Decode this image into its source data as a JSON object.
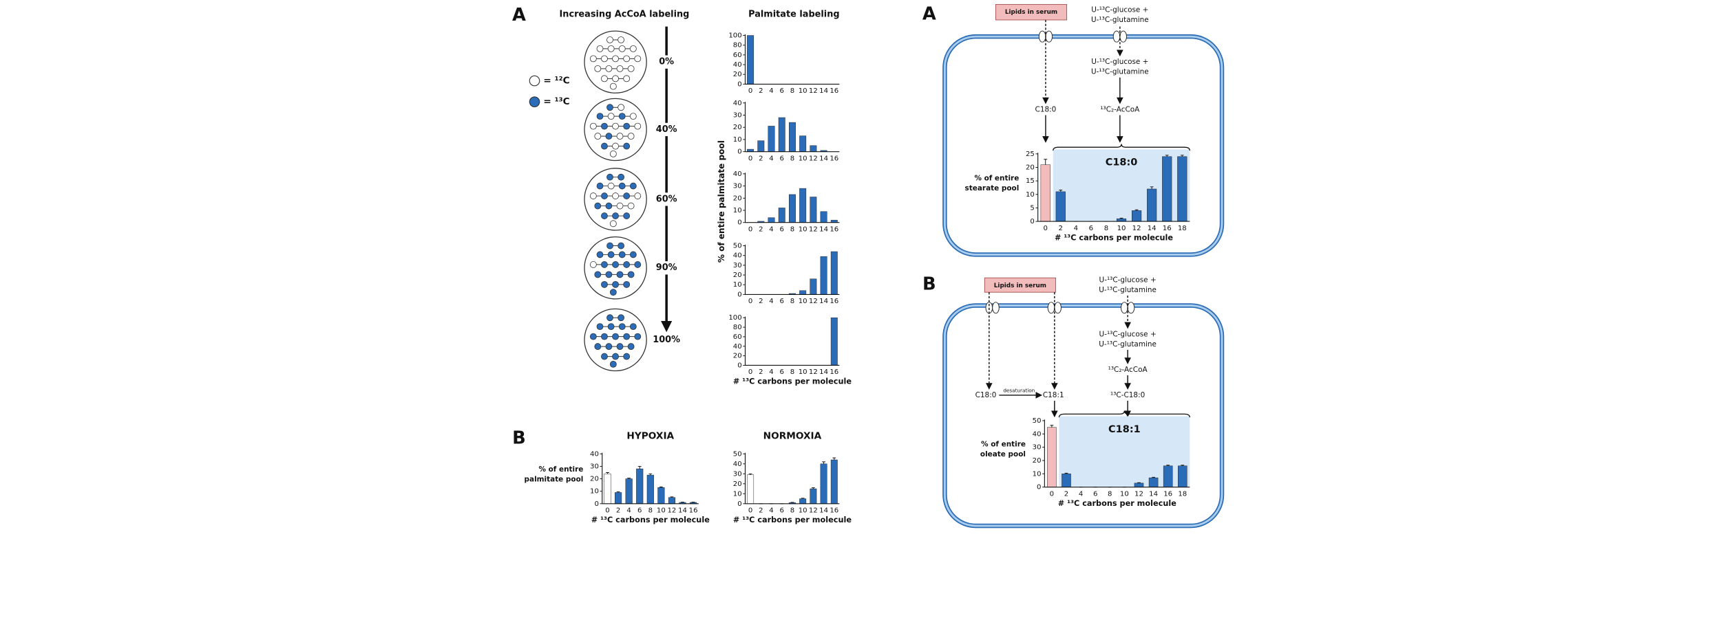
{
  "panel_labels": [
    "A",
    "B",
    "A",
    "B"
  ],
  "left": {
    "title_circles": "Increasing AcCoA labeling",
    "title_bars": "Palmitate labeling",
    "legend": [
      "= ¹²C",
      "= ¹³C"
    ],
    "legend_colors": [
      "#ffffff",
      "#2a6cb8"
    ],
    "levels": [
      {
        "value": 0,
        "label": "0%"
      },
      {
        "value": 40,
        "label": "40%"
      },
      {
        "value": 60,
        "label": "60%"
      },
      {
        "value": 90,
        "label": "90%"
      },
      {
        "value": 100,
        "label": "100%"
      }
    ]
  },
  "diagram": {
    "lipids": "Lipids in serum",
    "glucose": "U-¹³C-glucose +",
    "glutamine": "U-¹³C-glutamine",
    "c180": "C18:0",
    "accoa": "¹³C₂-AcCoA",
    "desaturation": "desaturation",
    "c181": "C18:1",
    "c13c180": "¹³C-C18:0"
  },
  "chart_data": [
    {
      "type": "bar",
      "categories": [
        0,
        2,
        4,
        6,
        8,
        10,
        12,
        14,
        16
      ],
      "values": [
        100,
        0,
        0,
        0,
        0,
        0,
        0,
        0,
        0
      ],
      "colors": [
        "#2a6cb8",
        "#2a6cb8",
        "#2a6cb8",
        "#2a6cb8",
        "#2a6cb8",
        "#2a6cb8",
        "#2a6cb8",
        "#2a6cb8",
        "#2a6cb8"
      ],
      "ylim": [
        0,
        100
      ],
      "yticks": [
        0,
        20,
        40,
        60,
        80,
        100
      ]
    },
    {
      "type": "bar",
      "categories": [
        0,
        2,
        4,
        6,
        8,
        10,
        12,
        14,
        16
      ],
      "values": [
        2,
        9,
        21,
        28,
        24,
        13,
        5,
        1,
        0
      ],
      "colors": [
        "#2a6cb8",
        "#2a6cb8",
        "#2a6cb8",
        "#2a6cb8",
        "#2a6cb8",
        "#2a6cb8",
        "#2a6cb8",
        "#2a6cb8",
        "#2a6cb8"
      ],
      "ylim": [
        0,
        40
      ],
      "yticks": [
        0,
        10,
        20,
        30,
        40
      ]
    },
    {
      "type": "bar",
      "categories": [
        0,
        2,
        4,
        6,
        8,
        10,
        12,
        14,
        16
      ],
      "values": [
        0,
        1,
        4,
        12,
        23,
        28,
        21,
        9,
        2
      ],
      "colors": [
        "#2a6cb8",
        "#2a6cb8",
        "#2a6cb8",
        "#2a6cb8",
        "#2a6cb8",
        "#2a6cb8",
        "#2a6cb8",
        "#2a6cb8",
        "#2a6cb8"
      ],
      "ylim": [
        0,
        40
      ],
      "yticks": [
        0,
        10,
        20,
        30,
        40
      ],
      "ylabel": "% of entire palmitate pool"
    },
    {
      "type": "bar",
      "categories": [
        0,
        2,
        4,
        6,
        8,
        10,
        12,
        14,
        16
      ],
      "values": [
        0,
        0,
        0,
        0,
        1,
        4,
        16,
        39,
        44
      ],
      "colors": [
        "#2a6cb8",
        "#2a6cb8",
        "#2a6cb8",
        "#2a6cb8",
        "#2a6cb8",
        "#2a6cb8",
        "#2a6cb8",
        "#2a6cb8",
        "#2a6cb8"
      ],
      "ylim": [
        0,
        50
      ],
      "yticks": [
        0,
        10,
        20,
        30,
        40,
        50
      ]
    },
    {
      "type": "bar",
      "categories": [
        0,
        2,
        4,
        6,
        8,
        10,
        12,
        14,
        16
      ],
      "values": [
        0,
        0,
        0,
        0,
        0,
        0,
        0,
        0,
        100
      ],
      "colors": [
        "#2a6cb8",
        "#2a6cb8",
        "#2a6cb8",
        "#2a6cb8",
        "#2a6cb8",
        "#2a6cb8",
        "#2a6cb8",
        "#2a6cb8",
        "#2a6cb8"
      ],
      "ylim": [
        0,
        100
      ],
      "yticks": [
        0,
        20,
        40,
        60,
        80,
        100
      ],
      "xlabel": "# ¹³C carbons per molecule"
    },
    {
      "type": "bar",
      "title": "HYPOXIA",
      "categories": [
        0,
        2,
        4,
        6,
        8,
        10,
        12,
        14,
        16
      ],
      "values": [
        24,
        9,
        20,
        28,
        23,
        13,
        5,
        1,
        1
      ],
      "errors": [
        1,
        0.5,
        0.5,
        2,
        1,
        0.5,
        0.5,
        0.3,
        0.3
      ],
      "colors": [
        "#ffffff",
        "#2a6cb8",
        "#2a6cb8",
        "#2a6cb8",
        "#2a6cb8",
        "#2a6cb8",
        "#2a6cb8",
        "#2a6cb8",
        "#2a6cb8"
      ],
      "ylim": [
        0,
        40
      ],
      "yticks": [
        0,
        10,
        20,
        30,
        40
      ],
      "ylabel": [
        "% of entire",
        "palmitate pool"
      ],
      "xlabel": "# ¹³C carbons per molecule"
    },
    {
      "type": "bar",
      "title": "NORMOXIA",
      "categories": [
        0,
        2,
        4,
        6,
        8,
        10,
        12,
        14,
        16
      ],
      "values": [
        29,
        0,
        0,
        0,
        1,
        5,
        15,
        40,
        44
      ],
      "errors": [
        1,
        0,
        0,
        0,
        0.3,
        0.5,
        1,
        2,
        2
      ],
      "colors": [
        "#ffffff",
        "#2a6cb8",
        "#2a6cb8",
        "#2a6cb8",
        "#2a6cb8",
        "#2a6cb8",
        "#2a6cb8",
        "#2a6cb8",
        "#2a6cb8"
      ],
      "ylim": [
        0,
        50
      ],
      "yticks": [
        0,
        10,
        20,
        30,
        40,
        50
      ],
      "xlabel": "# ¹³C carbons per molecule"
    },
    {
      "type": "bar",
      "categories": [
        0,
        2,
        4,
        6,
        8,
        10,
        12,
        14,
        16,
        18
      ],
      "values": [
        21,
        11,
        0,
        0,
        0,
        1,
        4,
        12,
        24,
        24
      ],
      "errors": [
        2,
        0.6,
        0,
        0,
        0,
        0.2,
        0.3,
        0.8,
        0.5,
        0.5
      ],
      "colors": [
        "#f2bcbc",
        "#2a6cb8",
        "#2a6cb8",
        "#2a6cb8",
        "#2a6cb8",
        "#2a6cb8",
        "#2a6cb8",
        "#2a6cb8",
        "#2a6cb8",
        "#2a6cb8"
      ],
      "ylim": [
        0,
        25
      ],
      "yticks": [
        0,
        5,
        10,
        15,
        20,
        25
      ],
      "ylabel": [
        "% of entire",
        "stearate pool"
      ],
      "xlabel": "# ¹³C carbons per molecule",
      "annotation": "C18:0",
      "annotation_color": "#d6e8f8"
    },
    {
      "type": "bar",
      "categories": [
        0,
        2,
        4,
        6,
        8,
        10,
        12,
        14,
        16,
        18
      ],
      "values": [
        45,
        10,
        0,
        0,
        0,
        0,
        3,
        7,
        16,
        16
      ],
      "errors": [
        1.5,
        0.5,
        0,
        0,
        0,
        0,
        0.3,
        0.4,
        0.5,
        0.5
      ],
      "colors": [
        "#f2bcbc",
        "#2a6cb8",
        "#2a6cb8",
        "#2a6cb8",
        "#2a6cb8",
        "#2a6cb8",
        "#2a6cb8",
        "#2a6cb8",
        "#2a6cb8",
        "#2a6cb8"
      ],
      "ylim": [
        0,
        50
      ],
      "yticks": [
        0,
        10,
        20,
        30,
        40,
        50
      ],
      "ylabel": [
        "% of entire",
        "oleate pool"
      ],
      "xlabel": "# ¹³C carbons per molecule",
      "annotation": "C18:1",
      "annotation_color": "#d6e8f8"
    }
  ]
}
